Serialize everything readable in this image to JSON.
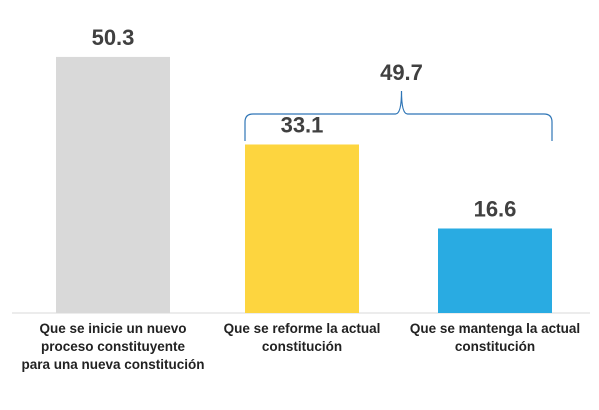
{
  "chart_data": {
    "type": "bar",
    "categories": [
      "Que se inicie un nuevo proceso constituyente para una nueva constitución",
      "Que se reforme la actual constitución",
      "Que se mantenga la actual constitución"
    ],
    "category_lines": [
      [
        "Que se inicie un nuevo",
        "proceso constituyente",
        "para una nueva constitución"
      ],
      [
        "Que se reforme la actual",
        "constitución"
      ],
      [
        "Que se mantenga la actual",
        "constitución"
      ]
    ],
    "values": [
      50.3,
      33.1,
      16.6
    ],
    "value_labels": [
      "50.3",
      "33.1",
      "16.6"
    ],
    "colors": [
      "#d9d9d9",
      "#fdd53f",
      "#29abe2"
    ],
    "ylim": [
      0,
      55
    ],
    "grid": false,
    "legend": "none",
    "annotations": [
      {
        "type": "bracket",
        "spans": [
          1,
          2
        ],
        "label": "49.7"
      }
    ]
  }
}
